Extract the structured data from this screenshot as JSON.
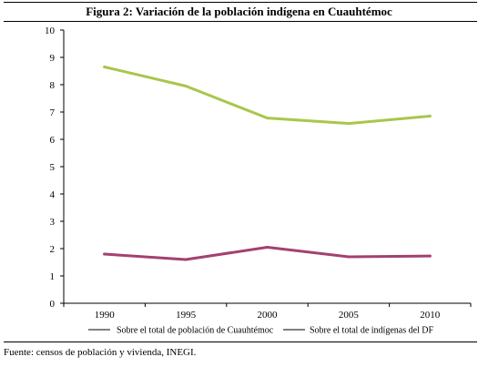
{
  "figure": {
    "title": "Figura 2: Variación de la población indígena en Cuauhtémoc",
    "source": "Fuente: censos de población y vivienda, INEGI."
  },
  "chart_data": {
    "type": "line",
    "title": "Figura 2: Variación de la población indígena en Cuauhtémoc",
    "xlabel": "",
    "ylabel": "",
    "x": [
      "1990",
      "1995",
      "2000",
      "2005",
      "2010"
    ],
    "ylim": [
      0,
      10
    ],
    "yticks": [
      0,
      1,
      2,
      3,
      4,
      5,
      6,
      7,
      8,
      9,
      10
    ],
    "grid": false,
    "legend_position": "bottom",
    "series": [
      {
        "name": "Sobre el total de población de Cuauhtémoc",
        "color": "#a9c64b",
        "values": [
          8.65,
          7.95,
          6.78,
          6.58,
          6.85
        ]
      },
      {
        "name": "Sobre el total de indígenas del DF",
        "color": "#a3416f",
        "values": [
          1.8,
          1.6,
          2.05,
          1.7,
          1.73
        ]
      }
    ]
  }
}
